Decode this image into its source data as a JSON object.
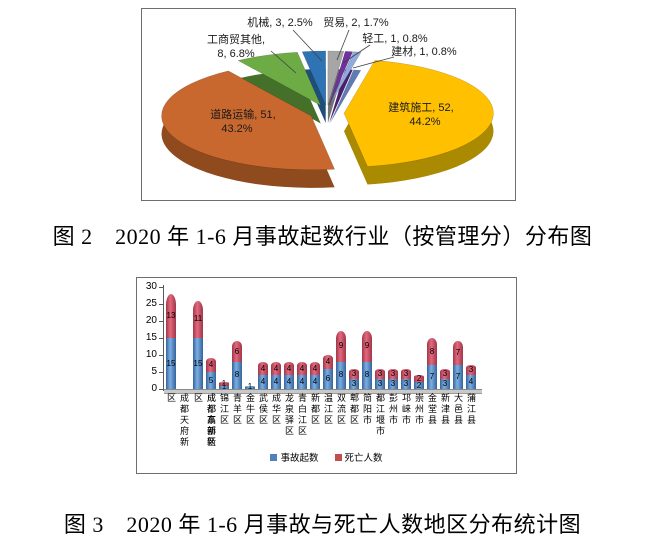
{
  "figure2": {
    "caption": "图 2　2020 年 1-6 月事故起数行业（按管理分）分布图"
  },
  "figure3": {
    "caption": "图 3　2020 年 1-6 月事故与死亡人数地区分布统计图"
  },
  "chart_data": [
    {
      "type": "pie",
      "style": "3d-exploded",
      "unit_note": "label, count, percent",
      "slices": [
        {
          "label": "建筑施工",
          "value": 52,
          "pct": 44.2,
          "color": "#FFC000",
          "side": "#A98A00"
        },
        {
          "label": "道路运输",
          "value": 51,
          "pct": 43.2,
          "color": "#C8682E",
          "side": "#8F4A1E"
        },
        {
          "label": "工商贸其他",
          "value": 8,
          "pct": 6.8,
          "color": "#6DAB45",
          "side": "#45702A"
        },
        {
          "label": "机械",
          "value": 3,
          "pct": 2.5,
          "color": "#2E74B5",
          "side": "#1F4E79"
        },
        {
          "label": "贸易",
          "value": 2,
          "pct": 1.7,
          "color": "#A6A6A6",
          "side": "#757575"
        },
        {
          "label": "轻工",
          "value": 1,
          "pct": 0.8,
          "color": "#7030A0",
          "side": "#4B2069"
        },
        {
          "label": "建材",
          "value": 1,
          "pct": 0.8,
          "color": "#8FAADC",
          "side": "#5F7BB0"
        }
      ]
    },
    {
      "type": "bar",
      "stacked": true,
      "style": "3d-cylinder",
      "ylim": [
        0,
        30
      ],
      "yticks": [
        0,
        5,
        10,
        15,
        20,
        25,
        30
      ],
      "grid": false,
      "legend_position": "bottom",
      "categories": [
        "成都天府新区",
        "成都东部新区",
        "成都高新区",
        "锦江区",
        "青羊区",
        "金牛区",
        "武侯区",
        "成华区",
        "龙泉驿区",
        "青白江区",
        "新都区",
        "温江区",
        "双流区",
        "郫都区",
        "简阳市",
        "都江堰市",
        "彭州市",
        "邛崃市",
        "崇州市",
        "金堂县",
        "新津县",
        "大邑县",
        "蒲江县"
      ],
      "series": [
        {
          "name": "事故起数",
          "color": "#4F81BD",
          "values": [
            15,
            15,
            5,
            1,
            8,
            1,
            4,
            4,
            4,
            4,
            4,
            6,
            8,
            3,
            8,
            3,
            3,
            3,
            2,
            7,
            3,
            7,
            4
          ]
        },
        {
          "name": "死亡人数",
          "color": "#C0504D",
          "values": [
            13,
            11,
            4,
            1,
            6,
            0,
            4,
            4,
            4,
            4,
            4,
            4,
            9,
            3,
            9,
            3,
            3,
            3,
            2,
            8,
            3,
            7,
            3
          ]
        }
      ]
    }
  ]
}
